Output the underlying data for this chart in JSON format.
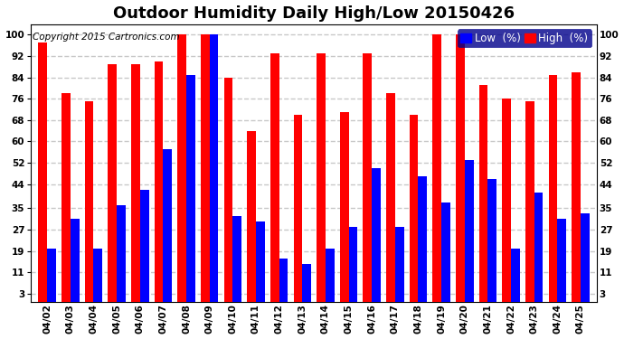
{
  "title": "Outdoor Humidity Daily High/Low 20150426",
  "copyright": "Copyright 2015 Cartronics.com",
  "legend_low": "Low  (%)",
  "legend_high": "High  (%)",
  "categories": [
    "04/02",
    "04/03",
    "04/04",
    "04/05",
    "04/06",
    "04/07",
    "04/08",
    "04/09",
    "04/10",
    "04/11",
    "04/12",
    "04/13",
    "04/14",
    "04/15",
    "04/16",
    "04/17",
    "04/18",
    "04/19",
    "04/20",
    "04/21",
    "04/22",
    "04/23",
    "04/24",
    "04/25"
  ],
  "high_values": [
    97,
    78,
    75,
    89,
    89,
    90,
    100,
    100,
    84,
    64,
    93,
    70,
    93,
    71,
    93,
    78,
    70,
    100,
    100,
    81,
    76,
    75,
    85,
    86
  ],
  "low_values": [
    20,
    31,
    20,
    36,
    42,
    57,
    85,
    100,
    32,
    30,
    16,
    14,
    20,
    28,
    50,
    28,
    47,
    37,
    53,
    46,
    20,
    41,
    31,
    33
  ],
  "bar_color_high": "#ff0000",
  "bar_color_low": "#0000ff",
  "bg_color": "#ffffff",
  "plot_bg_color": "#ffffff",
  "grid_color": "#c8c8c8",
  "ylim": [
    0,
    104
  ],
  "yticks": [
    3,
    11,
    19,
    27,
    35,
    44,
    52,
    60,
    68,
    76,
    84,
    92,
    100
  ],
  "title_fontsize": 13,
  "tick_fontsize": 7.5,
  "legend_fontsize": 8.5,
  "copyright_fontsize": 7.5
}
